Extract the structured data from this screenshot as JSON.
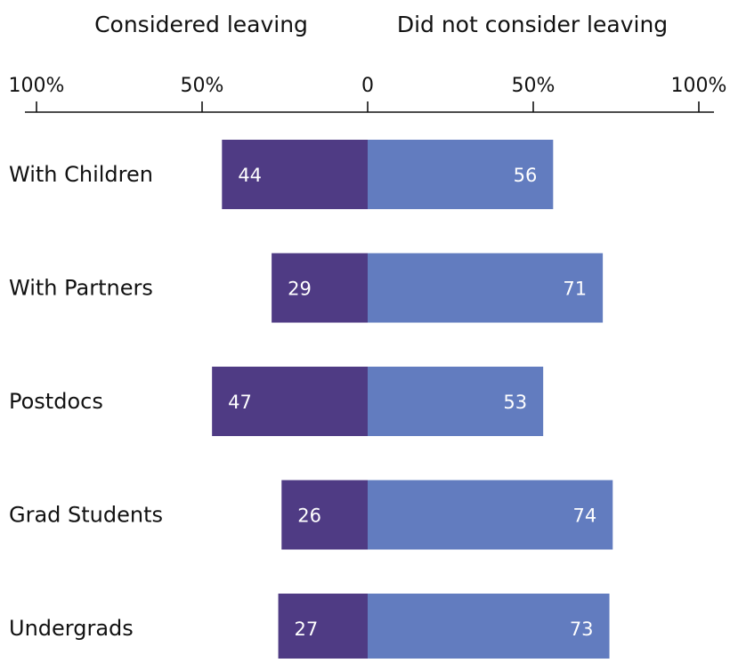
{
  "chart_data": {
    "type": "bar",
    "orientation": "horizontal-diverging",
    "headers": [
      "Considered leaving",
      "Did not consider leaving"
    ],
    "categories": [
      "With Children",
      "With Partners",
      "Postdocs",
      "Grad Students",
      "Undergrads"
    ],
    "series": [
      {
        "name": "Considered leaving",
        "values": [
          44,
          29,
          47,
          26,
          27
        ],
        "color": "#4f3b84"
      },
      {
        "name": "Did not consider leaving",
        "values": [
          56,
          71,
          53,
          74,
          73
        ],
        "color": "#627cbf"
      }
    ],
    "axis": {
      "tick_labels": [
        "100%",
        "50%",
        "0",
        "50%",
        "100%"
      ],
      "tick_values": [
        -100,
        -50,
        0,
        50,
        100
      ],
      "xlim": [
        -100,
        100
      ]
    },
    "value_label_color": "#ffffff",
    "legend": "none",
    "grid": false
  }
}
